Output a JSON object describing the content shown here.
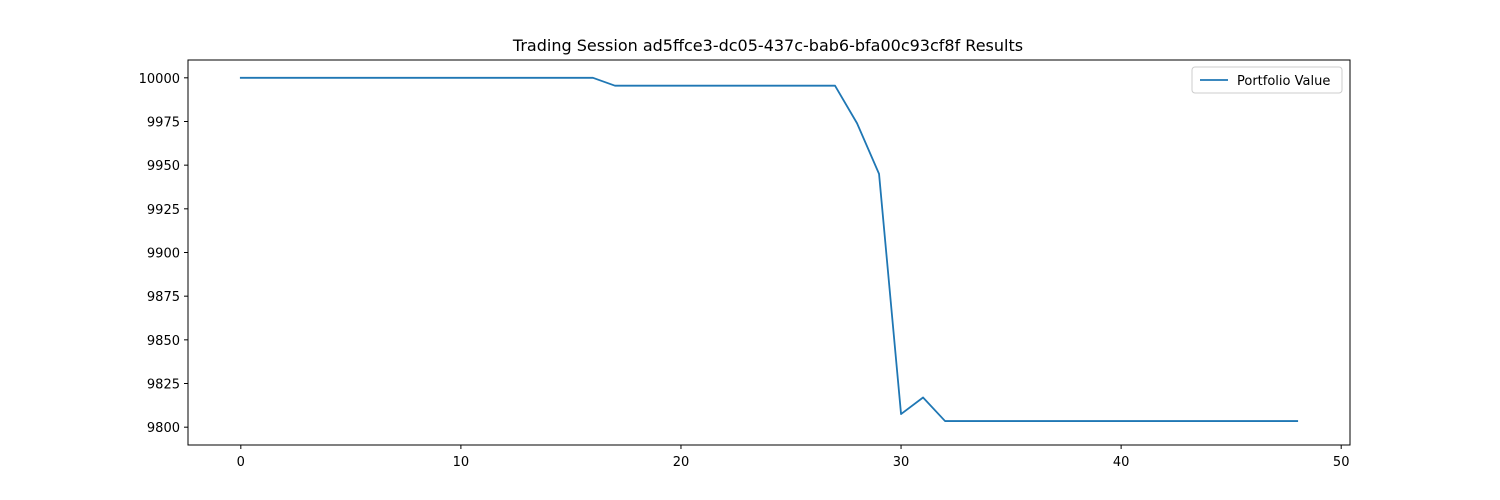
{
  "chart_data": {
    "type": "line",
    "title": "Trading Session ad5ffce3-dc05-437c-bab6-bfa00c93cf8f Results",
    "xlabel": "",
    "ylabel": "",
    "xlim": [
      -2.4,
      50.4
    ],
    "ylim": [
      9789.8,
      10010.2
    ],
    "xticks": [
      0,
      10,
      20,
      30,
      40,
      50
    ],
    "yticks": [
      9800,
      9825,
      9850,
      9875,
      9900,
      9925,
      9950,
      9975,
      10000
    ],
    "grid": false,
    "legend": "top-right",
    "series": [
      {
        "name": "Portfolio Value",
        "color": "#1f77b4",
        "x": [
          0,
          1,
          2,
          3,
          4,
          5,
          6,
          7,
          8,
          9,
          10,
          11,
          12,
          13,
          14,
          15,
          16,
          17,
          18,
          19,
          20,
          21,
          22,
          23,
          24,
          25,
          26,
          27,
          28,
          29,
          30,
          31,
          32,
          33,
          34,
          35,
          36,
          37,
          38,
          39,
          40,
          41,
          42,
          43,
          44,
          45,
          46,
          47,
          48
        ],
        "values": [
          10000,
          10000,
          10000,
          10000,
          10000,
          10000,
          10000,
          10000,
          10000,
          10000,
          10000,
          10000,
          10000,
          10000,
          10000,
          10000,
          10000,
          9995.5,
          9995.5,
          9995.5,
          9995.5,
          9995.5,
          9995.5,
          9995.5,
          9995.5,
          9995.5,
          9995.5,
          9995.5,
          9974,
          9945,
          9807.5,
          9817,
          9803.5,
          9803.5,
          9803.5,
          9803.5,
          9803.5,
          9803.5,
          9803.5,
          9803.5,
          9803.5,
          9803.5,
          9803.5,
          9803.5,
          9803.5,
          9803.5,
          9803.5,
          9803.5,
          9803.5
        ]
      }
    ]
  }
}
